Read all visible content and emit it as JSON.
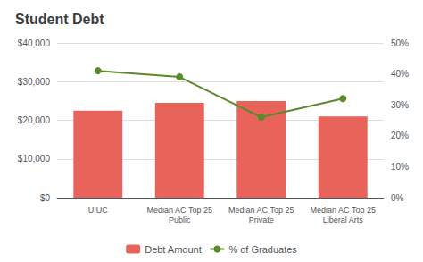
{
  "chart_data": {
    "type": "bar",
    "title": "Student Debt",
    "categories": [
      "UIUC",
      "Median AC Top 25\nPublic",
      "Median AC Top 25\nPrivate",
      "Median AC Top 25\nLiberal Arts"
    ],
    "series": [
      {
        "name": "Debt Amount",
        "type": "bar",
        "color": "#e8635a",
        "values": [
          22500,
          24500,
          25000,
          21000
        ]
      },
      {
        "name": "% of Graduates",
        "type": "line",
        "color": "#5a8a2e",
        "marker": "circle",
        "axis": "y2",
        "values": [
          41,
          39,
          26,
          32
        ]
      }
    ],
    "ylim": [
      0,
      40000
    ],
    "yticks": [
      {
        "value": 0,
        "label": "$0"
      },
      {
        "value": 10000,
        "label": "$10,000"
      },
      {
        "value": 20000,
        "label": "$20,000"
      },
      {
        "value": 30000,
        "label": "$30,000"
      },
      {
        "value": 40000,
        "label": "$40,000"
      }
    ],
    "y2lim": [
      0,
      50
    ],
    "y2ticks": [
      {
        "value": 0,
        "label": "0%"
      },
      {
        "value": 10,
        "label": "10%"
      },
      {
        "value": 20,
        "label": "20%"
      },
      {
        "value": 30,
        "label": "30%"
      },
      {
        "value": 40,
        "label": "40%"
      },
      {
        "value": 50,
        "label": "50%"
      }
    ],
    "grid": true,
    "legend": "bottom"
  }
}
